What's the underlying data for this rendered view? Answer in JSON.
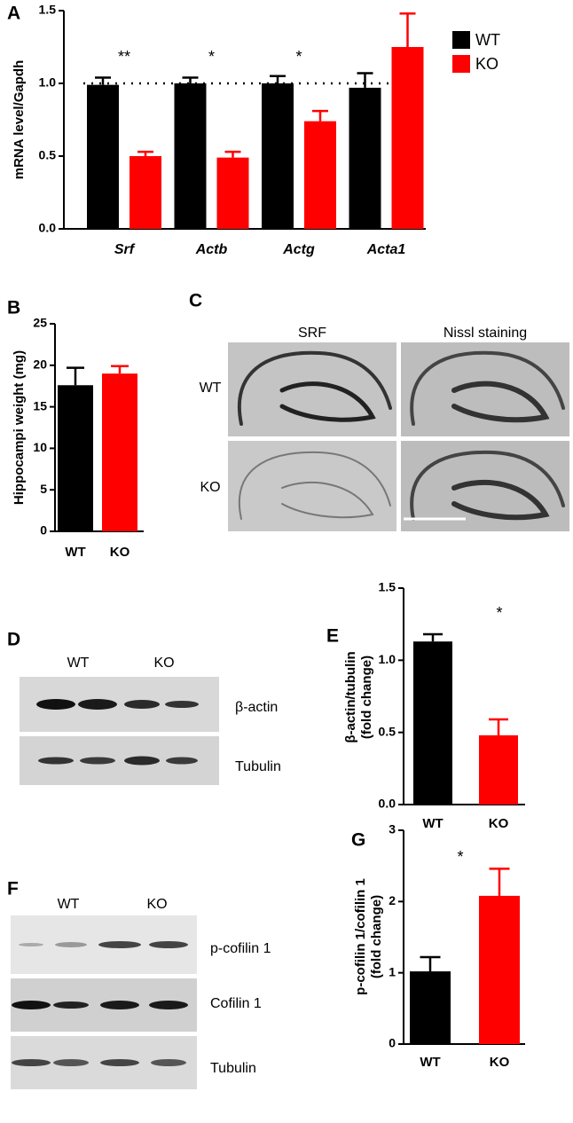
{
  "chart_data": [
    {
      "type": "bar",
      "panel": "A",
      "ylabel": [
        "mRNA level/Gapdh"
      ],
      "categories": [
        "Srf",
        "Actb",
        "Actg",
        "Acta1"
      ],
      "series": [
        {
          "name": "WT",
          "color": "#000000",
          "values": [
            0.99,
            1.0,
            1.0,
            0.97
          ],
          "errors": [
            0.05,
            0.04,
            0.05,
            0.1
          ]
        },
        {
          "name": "KO",
          "color": "#ff0000",
          "values": [
            0.5,
            0.49,
            0.74,
            1.25
          ],
          "errors": [
            0.03,
            0.04,
            0.07,
            0.23
          ]
        }
      ],
      "annotations": [
        "**",
        "*",
        "*",
        null
      ],
      "reference_line": 1,
      "ylim": [
        0,
        1.5
      ],
      "yticks": [
        {
          "value": 0,
          "label": "0.0"
        },
        0.5,
        {
          "value": 1,
          "label": "1.0"
        },
        1.5
      ]
    },
    {
      "type": "bar",
      "panel": "B",
      "ylabel": [
        "Hippocampi weight (mg)"
      ],
      "categories": [
        "WT",
        "KO"
      ],
      "values": [
        17.6,
        19.0
      ],
      "errors": [
        2.1,
        0.9
      ],
      "colors": [
        "#000000",
        "#ff0000"
      ],
      "ylim": [
        0,
        25
      ],
      "yticks": [
        0,
        5,
        10,
        15,
        20,
        25
      ]
    },
    {
      "type": "bar",
      "panel": "E",
      "ylabel": [
        "β-actin/tubulin",
        "(fold change)"
      ],
      "categories": [
        "WT",
        "KO"
      ],
      "values": [
        1.13,
        0.48
      ],
      "errors": [
        0.05,
        0.11
      ],
      "colors": [
        "#000000",
        "#ff0000"
      ],
      "annotation": "*",
      "ylim": [
        0,
        1.5
      ],
      "yticks": [
        {
          "value": 0,
          "label": "0.0"
        },
        0.5,
        {
          "value": 1,
          "label": "1.0"
        },
        1.5
      ]
    },
    {
      "type": "bar",
      "panel": "G",
      "ylabel": [
        "p-cofilin 1/cofilin 1",
        "(fold change)"
      ],
      "categories": [
        "WT",
        "KO"
      ],
      "values": [
        1.02,
        2.08
      ],
      "errors": [
        0.2,
        0.38
      ],
      "colors": [
        "#000000",
        "#ff0000"
      ],
      "annotation": "*",
      "ylim": [
        0,
        3
      ],
      "yticks": [
        0,
        1,
        2,
        3
      ]
    }
  ],
  "panel_c": {
    "panel": "C",
    "columns": [
      "SRF",
      "Nissl staining"
    ],
    "rows": [
      "WT",
      "KO"
    ]
  },
  "panel_d": {
    "panel": "D",
    "groups": [
      "WT",
      "KO"
    ],
    "blots": [
      "β-actin",
      "Tubulin"
    ]
  },
  "panel_f": {
    "panel": "F",
    "groups": [
      "WT",
      "KO"
    ],
    "blots": [
      "p-cofilin 1",
      "Cofilin 1",
      "Tubulin"
    ]
  }
}
